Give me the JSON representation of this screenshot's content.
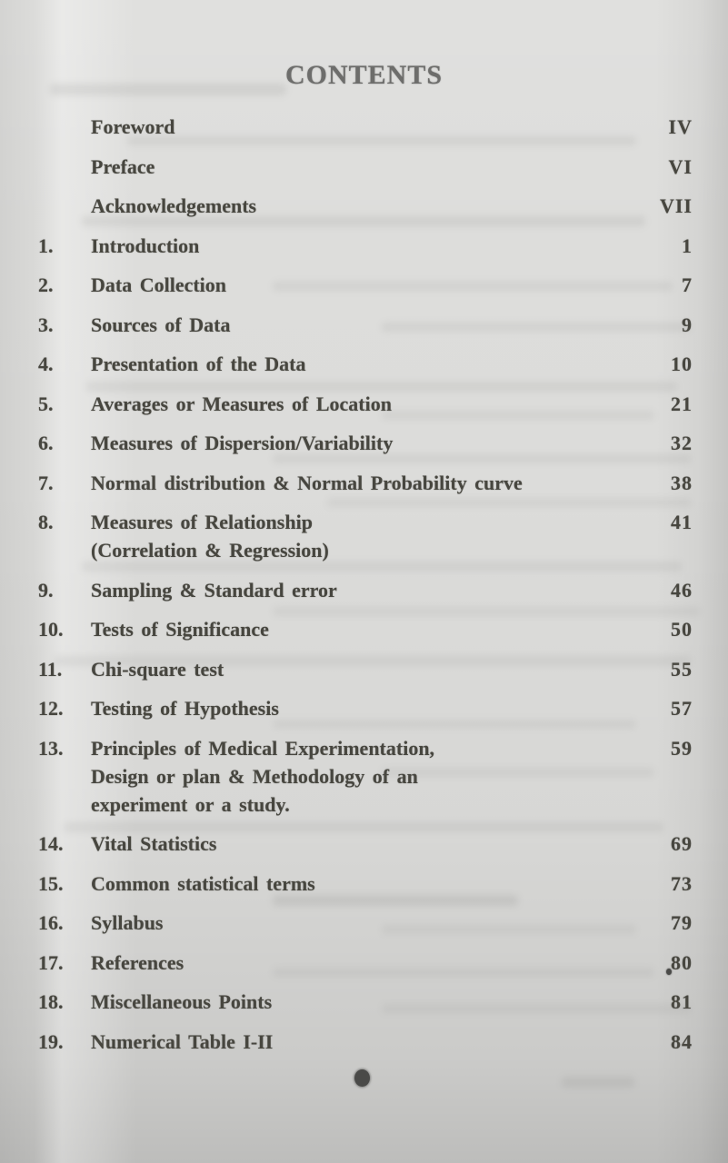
{
  "page": {
    "title": "CONTENTS",
    "toc_rows": [
      {
        "num": "",
        "lines": [
          "Foreword"
        ],
        "page": "IV"
      },
      {
        "num": "",
        "lines": [
          "Preface"
        ],
        "page": "VI"
      },
      {
        "num": "",
        "lines": [
          "Acknowledgements"
        ],
        "page": "VII"
      },
      {
        "num": "1.",
        "lines": [
          "Introduction"
        ],
        "page": "1"
      },
      {
        "num": "2.",
        "lines": [
          "Data Collection"
        ],
        "page": "7"
      },
      {
        "num": "3.",
        "lines": [
          "Sources of Data"
        ],
        "page": "9"
      },
      {
        "num": "4.",
        "lines": [
          "Presentation of the Data"
        ],
        "page": "10"
      },
      {
        "num": "5.",
        "lines": [
          "Averages or Measures of Location"
        ],
        "page": "21"
      },
      {
        "num": "6.",
        "lines": [
          "Measures of Dispersion/Variability"
        ],
        "page": "32"
      },
      {
        "num": "7.",
        "lines": [
          "Normal distribution & Normal Probability curve"
        ],
        "page": "38"
      },
      {
        "num": "8.",
        "lines": [
          "Measures of Relationship",
          "(Correlation & Regression)"
        ],
        "page": "41"
      },
      {
        "num": "9.",
        "lines": [
          "Sampling & Standard error"
        ],
        "page": "46"
      },
      {
        "num": "10.",
        "lines": [
          "Tests of Significance"
        ],
        "page": "50"
      },
      {
        "num": "11.",
        "lines": [
          "Chi-square test"
        ],
        "page": "55"
      },
      {
        "num": "12.",
        "lines": [
          "Testing of Hypothesis"
        ],
        "page": "57"
      },
      {
        "num": "13.",
        "lines": [
          "Principles of Medical Experimentation,",
          "Design or plan & Methodology of an",
          "experiment or a study."
        ],
        "page": "59"
      },
      {
        "num": "14.",
        "lines": [
          "Vital Statistics"
        ],
        "page": "69"
      },
      {
        "num": "15.",
        "lines": [
          "Common statistical terms"
        ],
        "page": "73"
      },
      {
        "num": "16.",
        "lines": [
          "Syllabus"
        ],
        "page": "79"
      },
      {
        "num": "17.",
        "lines": [
          "References"
        ],
        "page": "80"
      },
      {
        "num": "18.",
        "lines": [
          "Miscellaneous Points"
        ],
        "page": "81"
      },
      {
        "num": "19.",
        "lines": [
          "Numerical Table I-II"
        ],
        "page": "84"
      }
    ],
    "ornaments": {
      "end_of_contents_dot": "filled-circle",
      "stray_ink_dot": "small-dot"
    },
    "colors": {
      "paper": "#dcdcda",
      "ink": "#47463f",
      "title_ink": "#6d6d6b"
    }
  }
}
